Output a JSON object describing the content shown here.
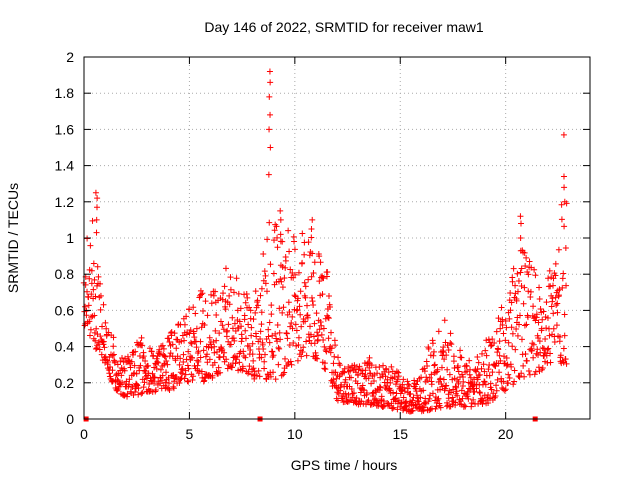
{
  "chart_data": {
    "type": "scatter",
    "title": "Day 146 of 2022, SRMTID for receiver maw1",
    "xlabel": "GPS time / hours",
    "ylabel": "SRMTID / TECUs",
    "xlim": [
      0,
      24
    ],
    "ylim": [
      0,
      2
    ],
    "grid": true,
    "x_ticks": [
      0,
      5,
      10,
      15,
      20
    ],
    "x_tick_labels": [
      "0",
      "5",
      "10",
      "15",
      "20"
    ],
    "y_ticks": [
      0,
      0.2,
      0.4,
      0.6,
      0.8,
      1.0,
      1.2,
      1.4,
      1.6,
      1.8,
      2.0
    ],
    "y_tick_labels": [
      "0",
      "0.2",
      "0.4",
      "0.6",
      "0.8",
      "1",
      "1.2",
      "1.4",
      "1.6",
      "1.8",
      "2"
    ],
    "marker": "+",
    "color": "#ff0000",
    "baseline_markers_x": [
      0.1,
      8.35,
      21.4
    ],
    "series": [
      {
        "name": "maw1",
        "envelope_x": [
          0.0,
          0.3,
          0.5,
          0.7,
          1.0,
          1.3,
          1.6,
          2.0,
          2.4,
          2.8,
          3.2,
          3.6,
          4.0,
          4.4,
          4.8,
          5.2,
          5.6,
          6.0,
          6.4,
          6.8,
          7.2,
          7.6,
          8.0,
          8.4,
          8.8,
          9.2,
          9.6,
          10.0,
          10.4,
          10.8,
          11.2,
          11.6,
          12.0,
          12.5,
          13.0,
          13.5,
          14.0,
          14.5,
          15.0,
          15.5,
          16.0,
          16.5,
          17.0,
          17.5,
          18.0,
          18.5,
          19.0,
          19.5,
          20.0,
          20.5,
          21.0,
          21.5,
          22.0,
          22.5,
          22.9
        ],
        "envelope_low": [
          0.5,
          0.45,
          0.4,
          0.35,
          0.3,
          0.2,
          0.15,
          0.12,
          0.12,
          0.14,
          0.15,
          0.15,
          0.15,
          0.18,
          0.2,
          0.2,
          0.2,
          0.22,
          0.25,
          0.28,
          0.25,
          0.25,
          0.22,
          0.22,
          0.22,
          0.22,
          0.25,
          0.3,
          0.35,
          0.35,
          0.3,
          0.25,
          0.1,
          0.08,
          0.08,
          0.08,
          0.07,
          0.06,
          0.05,
          0.04,
          0.04,
          0.05,
          0.06,
          0.07,
          0.06,
          0.05,
          0.07,
          0.1,
          0.15,
          0.2,
          0.22,
          0.25,
          0.3,
          0.3,
          0.3
        ],
        "envelope_high": [
          0.95,
          1.1,
          1.2,
          0.85,
          0.6,
          0.5,
          0.4,
          0.35,
          0.4,
          0.5,
          0.4,
          0.4,
          0.45,
          0.55,
          0.6,
          0.65,
          0.75,
          0.7,
          0.75,
          0.85,
          0.8,
          0.7,
          0.7,
          0.75,
          1.4,
          1.0,
          1.1,
          1.0,
          1.05,
          1.1,
          0.9,
          0.8,
          0.35,
          0.3,
          0.3,
          0.35,
          0.3,
          0.3,
          0.25,
          0.2,
          0.3,
          0.45,
          0.6,
          0.5,
          0.35,
          0.3,
          0.45,
          0.5,
          0.7,
          0.9,
          1.0,
          0.75,
          0.85,
          1.1,
          1.35
        ],
        "spikes": [
          {
            "x": 0.6,
            "values": [
              1.03,
              1.1,
              1.17,
              1.22,
              1.25
            ]
          },
          {
            "x": 8.8,
            "values": [
              1.35,
              1.5,
              1.6,
              1.68,
              1.78,
              1.86,
              1.92
            ]
          },
          {
            "x": 9.3,
            "values": [
              1.02,
              1.1,
              1.15
            ]
          },
          {
            "x": 10.8,
            "values": [
              1.05,
              1.1
            ]
          },
          {
            "x": 20.7,
            "values": [
              1.0,
              1.08,
              1.12
            ]
          },
          {
            "x": 22.8,
            "values": [
              1.2,
              1.28,
              1.34,
              1.57
            ]
          }
        ]
      }
    ]
  }
}
